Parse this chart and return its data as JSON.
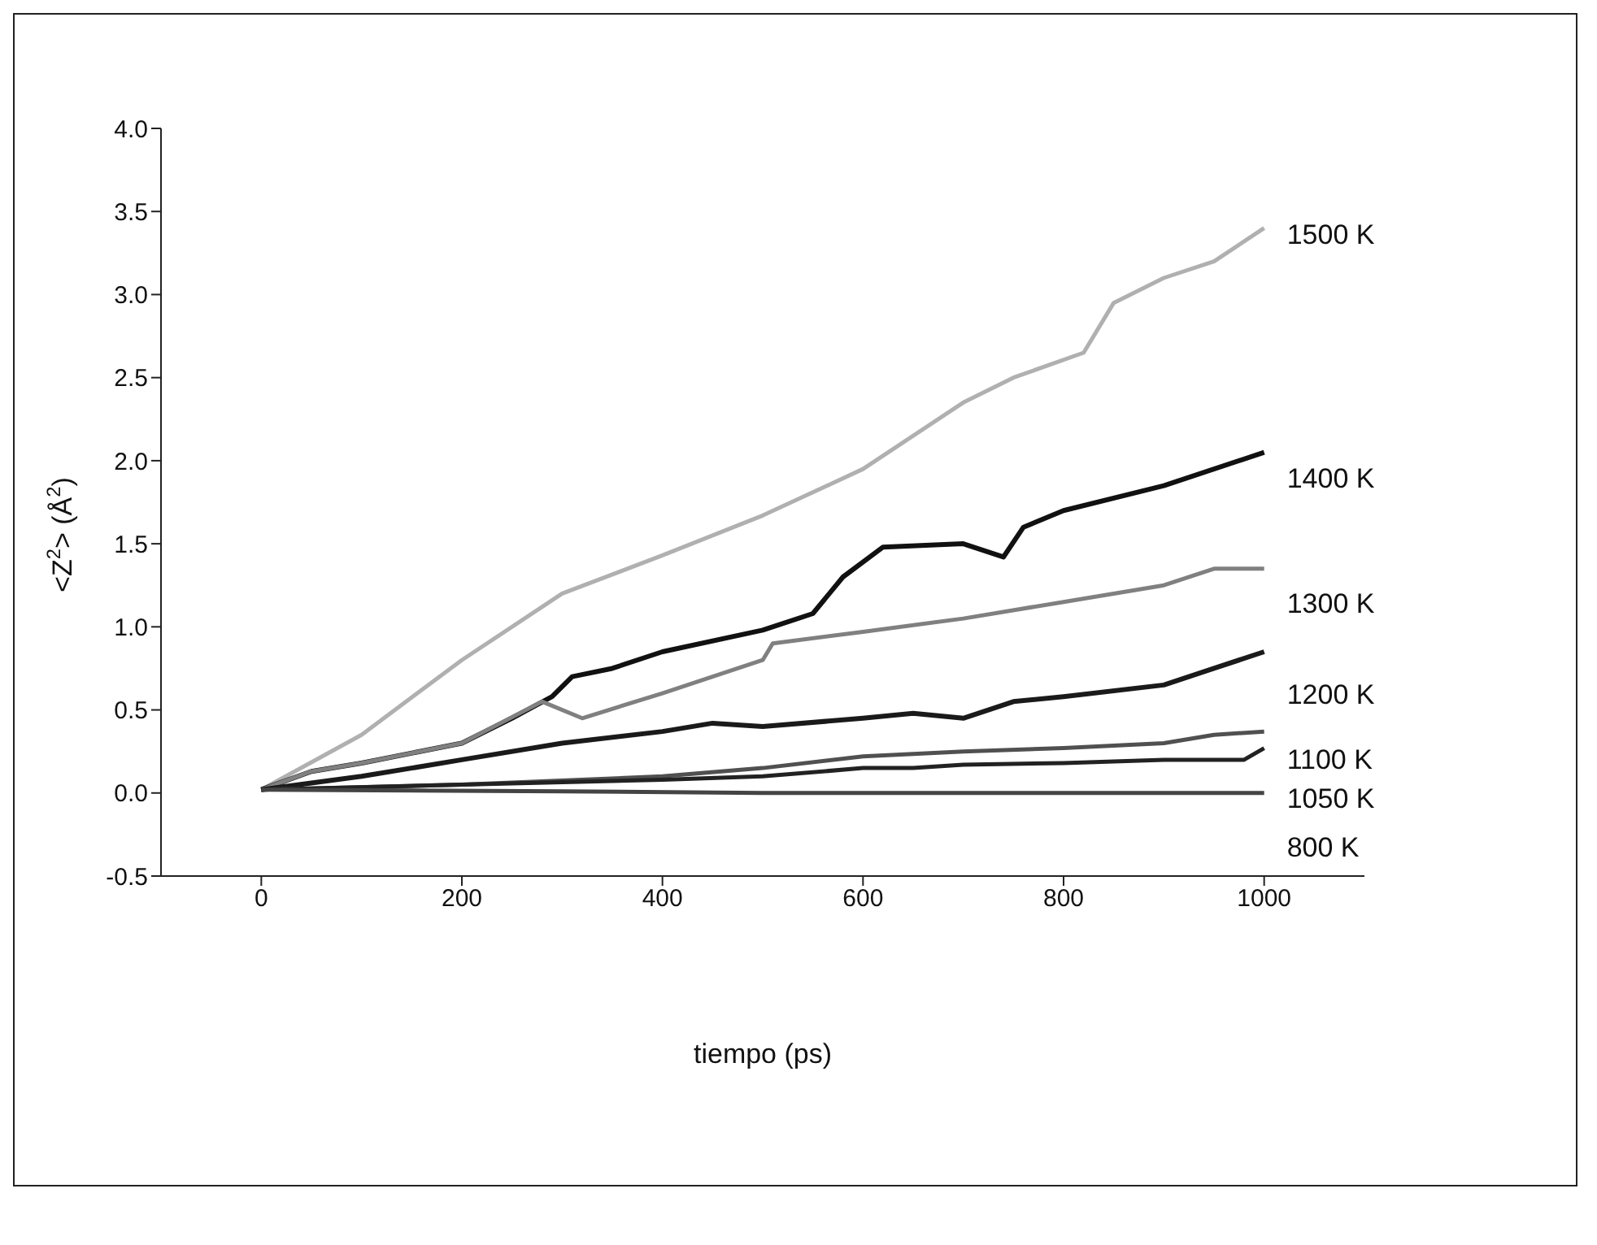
{
  "chart_data": {
    "type": "line",
    "xlabel": "tiempo (ps)",
    "ylabel": "<Z$^{2}$> (Å$^{2}$)",
    "xlim": [
      -100,
      1100
    ],
    "xticks": [
      0,
      200,
      400,
      600,
      800,
      1000
    ],
    "ylim": [
      -0.5,
      4.0
    ],
    "yticks": [
      {
        "value": -0.5,
        "label": "-0.5"
      },
      {
        "value": 0,
        "label": "0.0"
      },
      {
        "value": 0.5,
        "label": "0.5"
      },
      {
        "value": 1,
        "label": "1.0"
      },
      {
        "value": 1.5,
        "label": "1.5"
      },
      {
        "value": 2,
        "label": "2.0"
      },
      {
        "value": 2.5,
        "label": "2.5"
      },
      {
        "value": 3,
        "label": "3.0"
      },
      {
        "value": 3.5,
        "label": "3.5"
      },
      {
        "value": 4,
        "label": "4.0"
      }
    ],
    "grid": false,
    "legend": false,
    "marker": "none",
    "series": [
      {
        "name": "1500 K",
        "color": "#b0b0b0",
        "x": [
          0,
          100,
          200,
          300,
          400,
          500,
          600,
          700,
          750,
          820,
          850,
          900,
          950,
          1000
        ],
        "values": [
          0.02,
          0.35,
          0.8,
          1.2,
          1.43,
          1.67,
          1.95,
          2.35,
          2.5,
          2.65,
          2.95,
          3.1,
          3.2,
          3.4
        ]
      },
      {
        "name": "1400 K",
        "color": "#111111",
        "x": [
          0,
          50,
          100,
          200,
          250,
          290,
          310,
          350,
          400,
          500,
          550,
          580,
          620,
          700,
          740,
          760,
          800,
          900,
          1000
        ],
        "values": [
          0.02,
          0.13,
          0.18,
          0.3,
          0.45,
          0.58,
          0.7,
          0.75,
          0.85,
          0.98,
          1.08,
          1.3,
          1.48,
          1.5,
          1.42,
          1.6,
          1.7,
          1.85,
          2.05
        ]
      },
      {
        "name": "1300 K",
        "color": "#808080",
        "x": [
          0,
          50,
          100,
          200,
          280,
          320,
          400,
          500,
          510,
          600,
          700,
          800,
          900,
          950,
          1000
        ],
        "values": [
          0.02,
          0.13,
          0.18,
          0.3,
          0.55,
          0.45,
          0.6,
          0.8,
          0.9,
          0.97,
          1.05,
          1.15,
          1.25,
          1.35,
          1.35
        ]
      },
      {
        "name": "1200 K",
        "color": "#1a1a1a",
        "x": [
          0,
          100,
          200,
          300,
          400,
          450,
          500,
          600,
          650,
          700,
          750,
          800,
          900,
          950,
          1000
        ],
        "values": [
          0.02,
          0.1,
          0.2,
          0.3,
          0.37,
          0.42,
          0.4,
          0.45,
          0.48,
          0.45,
          0.55,
          0.58,
          0.65,
          0.75,
          0.85
        ]
      },
      {
        "name": "1100 K",
        "color": "#505050",
        "x": [
          0,
          200,
          400,
          500,
          600,
          700,
          800,
          900,
          950,
          1000
        ],
        "values": [
          0.02,
          0.05,
          0.1,
          0.15,
          0.22,
          0.25,
          0.27,
          0.3,
          0.35,
          0.37
        ]
      },
      {
        "name": "1050 K",
        "color": "#222222",
        "x": [
          0,
          200,
          400,
          500,
          600,
          650,
          700,
          800,
          900,
          980,
          1000
        ],
        "values": [
          0.02,
          0.05,
          0.08,
          0.1,
          0.15,
          0.15,
          0.17,
          0.18,
          0.2,
          0.2,
          0.27
        ]
      },
      {
        "name": "800 K",
        "color": "#444444",
        "x": [
          0,
          300,
          500,
          700,
          1000
        ],
        "values": [
          0.02,
          0.01,
          0.0,
          0.0,
          0.0
        ]
      }
    ]
  }
}
